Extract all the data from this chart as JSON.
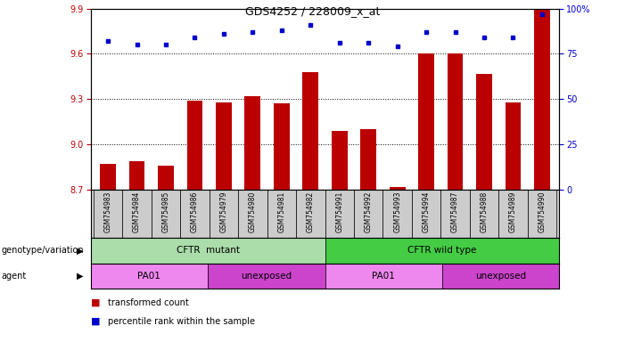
{
  "title": "GDS4252 / 228009_x_at",
  "samples": [
    "GSM754983",
    "GSM754984",
    "GSM754985",
    "GSM754986",
    "GSM754979",
    "GSM754980",
    "GSM754981",
    "GSM754982",
    "GSM754991",
    "GSM754992",
    "GSM754993",
    "GSM754994",
    "GSM754987",
    "GSM754988",
    "GSM754989",
    "GSM754990"
  ],
  "transformed_count": [
    8.87,
    8.89,
    8.86,
    9.29,
    9.28,
    9.32,
    9.27,
    9.48,
    9.09,
    9.1,
    8.72,
    9.6,
    9.6,
    9.47,
    9.28,
    9.97
  ],
  "percentile_rank": [
    82,
    80,
    80,
    84,
    86,
    87,
    88,
    91,
    81,
    81,
    79,
    87,
    87,
    84,
    84,
    97
  ],
  "ylim": [
    8.7,
    9.9
  ],
  "yticks_left": [
    8.7,
    9.0,
    9.3,
    9.6,
    9.9
  ],
  "yticks_right": [
    0,
    25,
    50,
    75,
    100
  ],
  "bar_color": "#bb0000",
  "dot_color": "#0000cc",
  "background_color": "#ffffff",
  "genotype_groups": [
    {
      "label": "CFTR  mutant",
      "start": 0,
      "end": 8,
      "color": "#aaddaa"
    },
    {
      "label": "CFTR wild type",
      "start": 8,
      "end": 16,
      "color": "#44cc44"
    }
  ],
  "agent_groups": [
    {
      "label": "PA01",
      "start": 0,
      "end": 4,
      "color": "#ee88ee"
    },
    {
      "label": "unexposed",
      "start": 4,
      "end": 8,
      "color": "#cc44cc"
    },
    {
      "label": "PA01",
      "start": 8,
      "end": 12,
      "color": "#ee88ee"
    },
    {
      "label": "unexposed",
      "start": 12,
      "end": 16,
      "color": "#cc44cc"
    }
  ],
  "legend_items": [
    {
      "label": "transformed count",
      "color": "#bb0000"
    },
    {
      "label": "percentile rank within the sample",
      "color": "#0000cc"
    }
  ],
  "xlabel_genotype": "genotype/variation",
  "xlabel_agent": "agent"
}
